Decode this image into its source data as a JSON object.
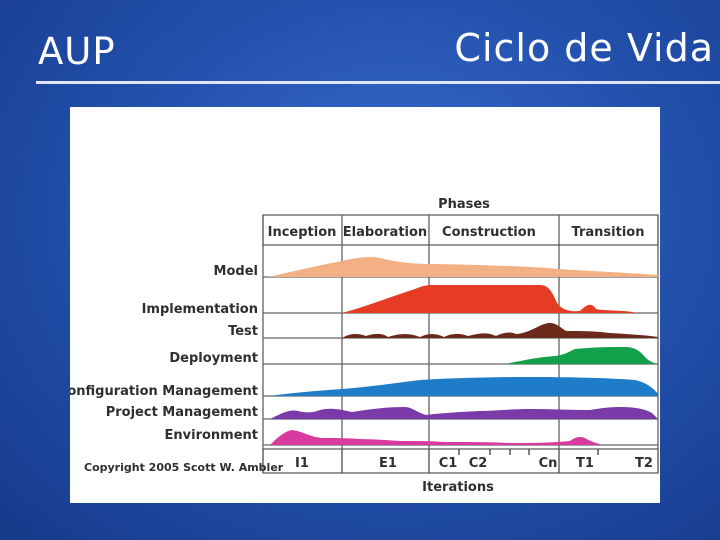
{
  "slide": {
    "title_left": "AUP",
    "title_right": "Ciclo de Vida"
  },
  "diagram": {
    "phases_header": "Phases",
    "phases": [
      "Inception",
      "Elaboration",
      "Construction",
      "Transition"
    ],
    "disciplines": [
      {
        "name": "Model",
        "color": "#f2b084"
      },
      {
        "name": "Implementation",
        "color": "#e63b24"
      },
      {
        "name": "Test",
        "color": "#6b2a1a"
      },
      {
        "name": "Deployment",
        "color": "#12a04a"
      },
      {
        "name": "Configuration Management",
        "color": "#1e7cc8"
      },
      {
        "name": "Project Management",
        "color": "#7a3aa8"
      },
      {
        "name": "Environment",
        "color": "#d83aa0"
      }
    ],
    "iterations": [
      "I1",
      "E1",
      "C1",
      "C2",
      "Cn",
      "T1",
      "T2"
    ],
    "iterations_header": "Iterations",
    "copyright": "Copyright 2005 Scott W. Ambler"
  }
}
